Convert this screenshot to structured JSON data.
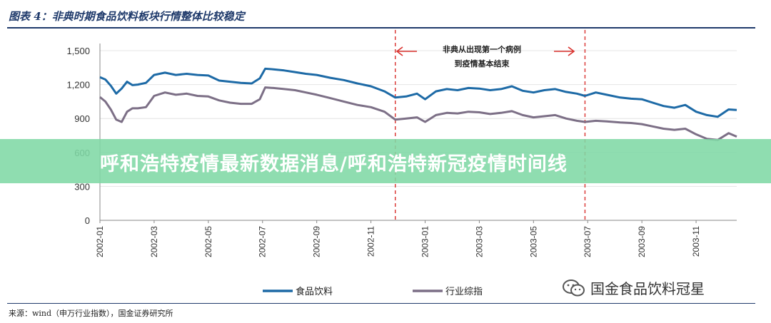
{
  "figure_title": "图表 4：非典时期食品饮料板块行情整体比较稳定",
  "source_note": "来源：wind（申万行业指数），国金证券研究所",
  "banner_text": "呼和浩特疫情最新数据消息/呼和浩特新冠疫情时间线",
  "watermark_text": "国金食品饮料冠星",
  "annotation": {
    "line1": "非典从出现第一个病例",
    "line2": "到疫情基本结束"
  },
  "colors": {
    "food_beverage": "#1d6aa6",
    "industry_composite": "#7c6f86",
    "marker_line": "#d9302c",
    "title": "#1f3a6b"
  },
  "chart_data": {
    "type": "line",
    "ylim": [
      0,
      1500
    ],
    "yticks": [
      0,
      300,
      600,
      900,
      1200,
      1500
    ],
    "ytick_labels": [
      "0",
      "300",
      "600",
      "900",
      "1,200",
      "1,500"
    ],
    "xticks": [
      "2002-01",
      "2002-03",
      "2002-05",
      "2002-07",
      "2002-09",
      "2002-11",
      "2003-01",
      "2003-03",
      "2003-05",
      "2003-07",
      "2003-09",
      "2003-11"
    ],
    "x_range": [
      0,
      23.5
    ],
    "markers": [
      {
        "x": 10.9
      },
      {
        "x": 17.9
      }
    ],
    "legend_position": "bottom-center",
    "series": [
      {
        "name": "食品饮料",
        "x": [
          0,
          0.2,
          0.4,
          0.6,
          0.8,
          1.0,
          1.2,
          1.4,
          1.7,
          2.0,
          2.4,
          2.8,
          3.2,
          3.6,
          4.0,
          4.4,
          4.8,
          5.2,
          5.6,
          5.9,
          6.1,
          6.4,
          6.8,
          7.2,
          7.6,
          8.0,
          8.5,
          9.0,
          9.5,
          10.0,
          10.5,
          10.9,
          11.3,
          11.7,
          12.0,
          12.4,
          12.8,
          13.2,
          13.6,
          14.0,
          14.4,
          14.8,
          15.2,
          15.6,
          16.0,
          16.4,
          16.8,
          17.2,
          17.6,
          17.9,
          18.3,
          18.7,
          19.2,
          19.6,
          20.0,
          20.4,
          20.8,
          21.2,
          21.6,
          22.0,
          22.4,
          22.8,
          23.2,
          23.5
        ],
        "values": [
          1265,
          1245,
          1190,
          1120,
          1165,
          1225,
          1195,
          1200,
          1215,
          1285,
          1305,
          1285,
          1295,
          1285,
          1280,
          1235,
          1225,
          1215,
          1210,
          1255,
          1340,
          1335,
          1325,
          1310,
          1295,
          1285,
          1260,
          1240,
          1210,
          1185,
          1140,
          1085,
          1095,
          1120,
          1070,
          1140,
          1160,
          1150,
          1170,
          1165,
          1150,
          1160,
          1185,
          1145,
          1130,
          1150,
          1160,
          1135,
          1120,
          1100,
          1130,
          1110,
          1085,
          1075,
          1070,
          1040,
          1010,
          995,
          1020,
          960,
          930,
          915,
          980,
          975
        ]
      },
      {
        "name": "行业综指",
        "x": [
          0,
          0.2,
          0.4,
          0.6,
          0.8,
          1.0,
          1.2,
          1.4,
          1.7,
          2.0,
          2.4,
          2.8,
          3.2,
          3.6,
          4.0,
          4.4,
          4.8,
          5.2,
          5.6,
          5.9,
          6.1,
          6.4,
          6.8,
          7.2,
          7.6,
          8.0,
          8.5,
          9.0,
          9.5,
          10.0,
          10.5,
          10.9,
          11.3,
          11.7,
          12.0,
          12.4,
          12.8,
          13.2,
          13.6,
          14.0,
          14.4,
          14.8,
          15.2,
          15.6,
          16.0,
          16.4,
          16.8,
          17.2,
          17.6,
          17.9,
          18.3,
          18.7,
          19.2,
          19.6,
          20.0,
          20.4,
          20.8,
          21.2,
          21.6,
          22.0,
          22.4,
          22.8,
          23.2,
          23.5
        ],
        "values": [
          1090,
          1050,
          980,
          890,
          870,
          960,
          990,
          990,
          1000,
          1100,
          1130,
          1110,
          1120,
          1100,
          1095,
          1060,
          1040,
          1030,
          1030,
          1070,
          1175,
          1170,
          1160,
          1150,
          1130,
          1110,
          1080,
          1050,
          1020,
          1000,
          960,
          890,
          900,
          910,
          870,
          930,
          950,
          945,
          960,
          955,
          940,
          950,
          965,
          930,
          910,
          920,
          930,
          900,
          880,
          870,
          880,
          875,
          865,
          860,
          850,
          830,
          810,
          800,
          810,
          760,
          720,
          710,
          770,
          740
        ]
      }
    ]
  }
}
